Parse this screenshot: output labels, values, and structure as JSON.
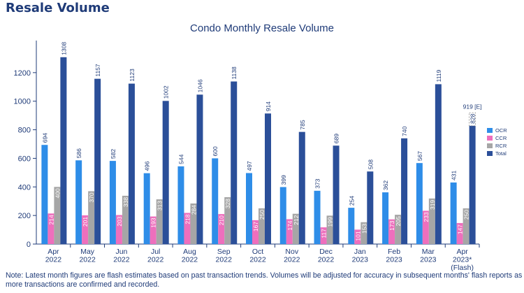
{
  "page": {
    "title": "Resale Volume",
    "note": "Note: Latest month figures are flash estimates based on past transaction trends. Volumes will be adjusted for accuracy in subsequent months' flash reports as more transactions are confirmed and recorded."
  },
  "colors": {
    "OCR": "#2e8de8",
    "CCR": "#ee6fbd",
    "RCR": "#a6a6a6",
    "Total": "#2b4f99",
    "title": "#1f3b78",
    "text": "#1f3b78"
  },
  "chart_data": {
    "type": "bar",
    "title": "Condo Monthly Resale Volume",
    "xlabel": "",
    "ylabel": "",
    "ylim": [
      0,
      1400
    ],
    "yticks": [
      0,
      200,
      400,
      600,
      800,
      1000,
      1200
    ],
    "grid": false,
    "legend_position": "right",
    "categories": [
      [
        "Apr",
        "2022"
      ],
      [
        "May",
        "2022"
      ],
      [
        "Jun",
        "2022"
      ],
      [
        "Jul",
        "2022"
      ],
      [
        "Aug",
        "2022"
      ],
      [
        "Sep",
        "2022"
      ],
      [
        "Oct",
        "2022"
      ],
      [
        "Nov",
        "2022"
      ],
      [
        "Dec",
        "2022"
      ],
      [
        "Jan",
        "2023"
      ],
      [
        "Feb",
        "2023"
      ],
      [
        "Mar",
        "2023"
      ],
      [
        "Apr",
        "2023*",
        "(Flash)"
      ]
    ],
    "series": [
      {
        "name": "OCR",
        "values": [
          694,
          586,
          582,
          496,
          544,
          600,
          497,
          399,
          373,
          254,
          362,
          567,
          431
        ]
      },
      {
        "name": "CCR",
        "values": [
          214,
          201,
          203,
          193,
          218,
          210,
          167,
          174,
          117,
          101,
          173,
          233,
          147
        ]
      },
      {
        "name": "RCR",
        "values": [
          400,
          370,
          338,
          313,
          284,
          328,
          250,
          212,
          199,
          153,
          205,
          319,
          250
        ]
      },
      {
        "name": "Total",
        "values": [
          1308,
          1157,
          1123,
          1002,
          1046,
          1138,
          914,
          785,
          689,
          508,
          740,
          1119,
          828
        ]
      }
    ],
    "estimate": {
      "category_index": 12,
      "value": 919,
      "label": "919 [E]"
    }
  }
}
